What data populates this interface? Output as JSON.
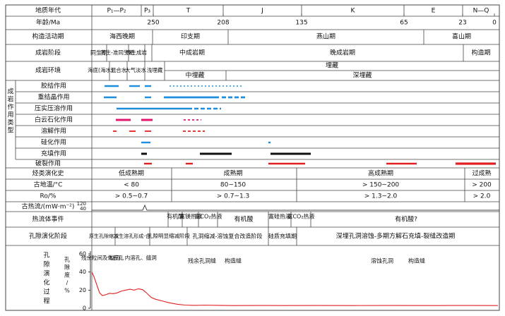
{
  "headers": {
    "age_unit": "地质年代",
    "age_ma": "年龄/Ma",
    "tectonic": "构造活动期",
    "diagenetic_stage": "成岩阶段",
    "diagenetic_env": "成岩环境",
    "diagenesis_group": "成岩作用类型",
    "fracture": "破裂作用",
    "hydrocarbon_history": "烃类演化史",
    "paleotemp": "古地温/°C",
    "ro": "Ro/%",
    "heat_flow": "古热流/(mW·m⁻²)",
    "thermal_fluid": "热流体事件",
    "pore_stage": "孔隙演化阶段",
    "pore_process": "孔隙演化过程",
    "porosity_axis": "孔隙度/%"
  },
  "geologic_periods": [
    "P₁—P₂",
    "P₃",
    "T",
    "J",
    "K",
    "E",
    "N—Q"
  ],
  "age_ticks": [
    "250",
    "208",
    "135",
    "65",
    "23",
    "0"
  ],
  "tectonic_phases": [
    "海西晚期",
    "印支期",
    "燕山期",
    "喜山期"
  ],
  "diagenetic_stages": [
    "同生期",
    "同生-准同生期",
    "表生成岩",
    "中成岩期",
    "晚成岩期",
    "构造期"
  ],
  "diagenetic_envs": {
    "top": [
      "海底(海水)",
      "混合水",
      "大气淡水",
      "浅埋藏"
    ],
    "burial": "埋藏",
    "medium_burial": "中埋藏",
    "deep_burial": "深埋藏"
  },
  "diagenesis_types": [
    "胶结作用",
    "重结晶作用",
    "压实压溶作用",
    "白云石化作用",
    "溶解作用",
    "硅化作用",
    "充填作用"
  ],
  "hydrocarbon_stages": [
    "低成熟期",
    "成熟期",
    "高成熟期",
    "过成熟"
  ],
  "paleotemps": [
    "< 80",
    "80~150",
    "> 150~200",
    "> 200"
  ],
  "ro_values": [
    "> 0.5~0.7",
    "> 0.7~1.3",
    "> 1.3~2.0",
    "> 2.0"
  ],
  "heat_flow_ticks": [
    "120",
    "40"
  ],
  "thermal_events": [
    "有机酸",
    "富镁热液",
    "富CO₂热液",
    "有机酸",
    "富硅热液",
    "富CO₂热液",
    "有机酸?"
  ],
  "pore_stages": [
    "原生孔隙缩减",
    "次生溶孔形成-合",
    "孔隙明显缩减阶段",
    "孔洞缩减-溶蚀复合改造阶段",
    "硅质充填期",
    "深埋孔洞溶蚀-多期方解石充填-裂缝改造期"
  ],
  "pore_labels": [
    "残余粒间及体腔孔",
    "粒间、内溶孔、缝洞",
    "残余孔洞缝",
    "构造缝",
    "溶蚀孔洞",
    "构造缝"
  ],
  "porosity_ticks": [
    "60",
    "40",
    "20",
    "0"
  ],
  "colors": {
    "blue": "#1f8fdd",
    "magenta": "#e0196e",
    "red": "#e02020",
    "black": "#111111",
    "line": "#444444"
  }
}
